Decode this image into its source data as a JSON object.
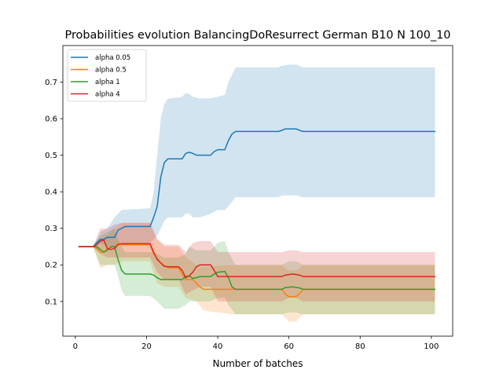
{
  "chart_data": {
    "type": "line",
    "title": "Probabilities evolution BalancingDoResurrect German B10 N 100_10",
    "xlabel": "Number of batches",
    "ylabel": "",
    "xlim": [
      -3.5,
      106
    ],
    "ylim": [
      0.005,
      0.8
    ],
    "xticks": [
      0,
      20,
      40,
      60,
      80,
      100
    ],
    "yticks": [
      0.1,
      0.2,
      0.3,
      0.4,
      0.5,
      0.6,
      0.7
    ],
    "grid": false,
    "legend_position": "top-left",
    "series": [
      {
        "name": "alpha 0.05",
        "color": "#1f77b4",
        "points": [
          [
            1,
            0.25
          ],
          [
            5,
            0.25
          ],
          [
            6,
            0.26
          ],
          [
            7,
            0.27
          ],
          [
            8,
            0.27
          ],
          [
            9,
            0.275
          ],
          [
            11,
            0.275
          ],
          [
            12,
            0.295
          ],
          [
            14,
            0.305
          ],
          [
            20,
            0.305
          ],
          [
            21,
            0.305
          ],
          [
            22,
            0.33
          ],
          [
            23,
            0.36
          ],
          [
            24,
            0.44
          ],
          [
            25,
            0.48
          ],
          [
            26,
            0.49
          ],
          [
            30,
            0.49
          ],
          [
            31,
            0.505
          ],
          [
            32,
            0.508
          ],
          [
            33,
            0.505
          ],
          [
            34,
            0.5
          ],
          [
            37,
            0.5
          ],
          [
            38,
            0.5
          ],
          [
            39,
            0.51
          ],
          [
            40,
            0.515
          ],
          [
            42,
            0.515
          ],
          [
            43,
            0.54
          ],
          [
            44,
            0.558
          ],
          [
            45,
            0.565
          ],
          [
            57,
            0.565
          ],
          [
            58,
            0.568
          ],
          [
            59,
            0.572
          ],
          [
            62,
            0.572
          ],
          [
            63,
            0.568
          ],
          [
            64,
            0.565
          ],
          [
            101,
            0.565
          ]
        ],
        "band": [
          [
            1,
            0.25,
            0.25
          ],
          [
            5,
            0.25,
            0.25
          ],
          [
            7,
            0.26,
            0.29
          ],
          [
            9,
            0.25,
            0.3
          ],
          [
            11,
            0.25,
            0.33
          ],
          [
            13,
            0.26,
            0.35
          ],
          [
            21,
            0.26,
            0.355
          ],
          [
            22,
            0.27,
            0.4
          ],
          [
            23,
            0.28,
            0.5
          ],
          [
            24,
            0.3,
            0.6
          ],
          [
            25,
            0.32,
            0.64
          ],
          [
            26,
            0.33,
            0.655
          ],
          [
            29,
            0.33,
            0.658
          ],
          [
            30,
            0.33,
            0.66
          ],
          [
            31,
            0.34,
            0.67
          ],
          [
            32,
            0.34,
            0.668
          ],
          [
            33,
            0.33,
            0.66
          ],
          [
            35,
            0.33,
            0.655
          ],
          [
            38,
            0.34,
            0.656
          ],
          [
            40,
            0.35,
            0.66
          ],
          [
            42,
            0.35,
            0.665
          ],
          [
            43,
            0.36,
            0.7
          ],
          [
            45,
            0.385,
            0.74
          ],
          [
            57,
            0.385,
            0.74
          ],
          [
            58,
            0.39,
            0.745
          ],
          [
            60,
            0.39,
            0.748
          ],
          [
            62,
            0.39,
            0.748
          ],
          [
            64,
            0.385,
            0.74
          ],
          [
            101,
            0.385,
            0.74
          ]
        ]
      },
      {
        "name": "alpha 0.5",
        "color": "#ff7f0e",
        "points": [
          [
            1,
            0.25
          ],
          [
            5,
            0.25
          ],
          [
            6,
            0.245
          ],
          [
            7,
            0.235
          ],
          [
            8,
            0.235
          ],
          [
            9,
            0.245
          ],
          [
            11,
            0.25
          ],
          [
            12,
            0.26
          ],
          [
            13,
            0.255
          ],
          [
            21,
            0.255
          ],
          [
            22,
            0.23
          ],
          [
            24,
            0.205
          ],
          [
            26,
            0.192
          ],
          [
            29,
            0.192
          ],
          [
            30,
            0.175
          ],
          [
            31,
            0.16
          ],
          [
            33,
            0.16
          ],
          [
            34,
            0.15
          ],
          [
            35,
            0.14
          ],
          [
            36,
            0.133
          ],
          [
            44,
            0.133
          ],
          [
            45,
            0.133
          ],
          [
            58,
            0.133
          ],
          [
            59,
            0.12
          ],
          [
            60,
            0.113
          ],
          [
            62,
            0.113
          ],
          [
            63,
            0.122
          ],
          [
            64,
            0.133
          ],
          [
            101,
            0.133
          ]
        ],
        "band": [
          [
            1,
            0.25,
            0.25
          ],
          [
            5,
            0.25,
            0.25
          ],
          [
            7,
            0.19,
            0.27
          ],
          [
            9,
            0.2,
            0.28
          ],
          [
            11,
            0.2,
            0.3
          ],
          [
            13,
            0.21,
            0.315
          ],
          [
            21,
            0.21,
            0.315
          ],
          [
            23,
            0.15,
            0.27
          ],
          [
            25,
            0.14,
            0.25
          ],
          [
            29,
            0.14,
            0.25
          ],
          [
            31,
            0.11,
            0.22
          ],
          [
            34,
            0.1,
            0.2
          ],
          [
            36,
            0.075,
            0.195
          ],
          [
            44,
            0.065,
            0.2
          ],
          [
            58,
            0.065,
            0.2
          ],
          [
            59,
            0.055,
            0.19
          ],
          [
            60,
            0.045,
            0.185
          ],
          [
            62,
            0.045,
            0.185
          ],
          [
            63,
            0.055,
            0.19
          ],
          [
            64,
            0.065,
            0.2
          ],
          [
            101,
            0.065,
            0.2
          ]
        ]
      },
      {
        "name": "alpha 1",
        "color": "#2ca02c",
        "points": [
          [
            1,
            0.25
          ],
          [
            5,
            0.25
          ],
          [
            6,
            0.25
          ],
          [
            7,
            0.242
          ],
          [
            8,
            0.235
          ],
          [
            9,
            0.24
          ],
          [
            10,
            0.25
          ],
          [
            11,
            0.25
          ],
          [
            12,
            0.215
          ],
          [
            13,
            0.185
          ],
          [
            14,
            0.175
          ],
          [
            21,
            0.175
          ],
          [
            22,
            0.172
          ],
          [
            23,
            0.165
          ],
          [
            24,
            0.16
          ],
          [
            29,
            0.16
          ],
          [
            30,
            0.16
          ],
          [
            31,
            0.168
          ],
          [
            32,
            0.17
          ],
          [
            33,
            0.163
          ],
          [
            34,
            0.165
          ],
          [
            35,
            0.168
          ],
          [
            38,
            0.168
          ],
          [
            39,
            0.175
          ],
          [
            40,
            0.18
          ],
          [
            42,
            0.182
          ],
          [
            43,
            0.165
          ],
          [
            44,
            0.14
          ],
          [
            45,
            0.133
          ],
          [
            58,
            0.133
          ],
          [
            59,
            0.138
          ],
          [
            61,
            0.14
          ],
          [
            63,
            0.137
          ],
          [
            64,
            0.133
          ],
          [
            101,
            0.133
          ]
        ],
        "band": [
          [
            1,
            0.25,
            0.25
          ],
          [
            5,
            0.25,
            0.25
          ],
          [
            7,
            0.2,
            0.28
          ],
          [
            9,
            0.2,
            0.29
          ],
          [
            11,
            0.2,
            0.3
          ],
          [
            12,
            0.17,
            0.27
          ],
          [
            13,
            0.13,
            0.25
          ],
          [
            14,
            0.115,
            0.235
          ],
          [
            21,
            0.115,
            0.235
          ],
          [
            23,
            0.1,
            0.23
          ],
          [
            25,
            0.08,
            0.22
          ],
          [
            29,
            0.08,
            0.22
          ],
          [
            31,
            0.09,
            0.23
          ],
          [
            32,
            0.1,
            0.25
          ],
          [
            34,
            0.1,
            0.24
          ],
          [
            38,
            0.1,
            0.24
          ],
          [
            40,
            0.11,
            0.26
          ],
          [
            42,
            0.11,
            0.265
          ],
          [
            43,
            0.09,
            0.235
          ],
          [
            45,
            0.065,
            0.2
          ],
          [
            58,
            0.065,
            0.2
          ],
          [
            60,
            0.07,
            0.21
          ],
          [
            62,
            0.07,
            0.21
          ],
          [
            64,
            0.065,
            0.2
          ],
          [
            101,
            0.065,
            0.2
          ]
        ]
      },
      {
        "name": "alpha 4",
        "color": "#d62728",
        "points": [
          [
            1,
            0.25
          ],
          [
            5,
            0.25
          ],
          [
            6,
            0.255
          ],
          [
            7,
            0.265
          ],
          [
            8,
            0.268
          ],
          [
            9,
            0.245
          ],
          [
            10,
            0.242
          ],
          [
            11,
            0.245
          ],
          [
            12,
            0.255
          ],
          [
            13,
            0.258
          ],
          [
            21,
            0.258
          ],
          [
            22,
            0.235
          ],
          [
            23,
            0.215
          ],
          [
            24,
            0.205
          ],
          [
            25,
            0.196
          ],
          [
            26,
            0.195
          ],
          [
            29,
            0.195
          ],
          [
            30,
            0.185
          ],
          [
            31,
            0.165
          ],
          [
            32,
            0.17
          ],
          [
            33,
            0.18
          ],
          [
            34,
            0.195
          ],
          [
            35,
            0.2
          ],
          [
            38,
            0.2
          ],
          [
            39,
            0.185
          ],
          [
            40,
            0.168
          ],
          [
            58,
            0.168
          ],
          [
            59,
            0.172
          ],
          [
            61,
            0.175
          ],
          [
            63,
            0.172
          ],
          [
            64,
            0.168
          ],
          [
            101,
            0.168
          ]
        ],
        "band": [
          [
            1,
            0.25,
            0.25
          ],
          [
            5,
            0.25,
            0.25
          ],
          [
            7,
            0.23,
            0.3
          ],
          [
            9,
            0.22,
            0.3
          ],
          [
            11,
            0.22,
            0.31
          ],
          [
            13,
            0.22,
            0.315
          ],
          [
            21,
            0.22,
            0.315
          ],
          [
            23,
            0.18,
            0.27
          ],
          [
            25,
            0.16,
            0.255
          ],
          [
            29,
            0.16,
            0.255
          ],
          [
            31,
            0.12,
            0.235
          ],
          [
            33,
            0.13,
            0.26
          ],
          [
            35,
            0.14,
            0.265
          ],
          [
            38,
            0.14,
            0.265
          ],
          [
            40,
            0.1,
            0.235
          ],
          [
            58,
            0.1,
            0.235
          ],
          [
            60,
            0.11,
            0.24
          ],
          [
            62,
            0.11,
            0.24
          ],
          [
            64,
            0.1,
            0.235
          ],
          [
            101,
            0.1,
            0.235
          ]
        ]
      }
    ]
  }
}
